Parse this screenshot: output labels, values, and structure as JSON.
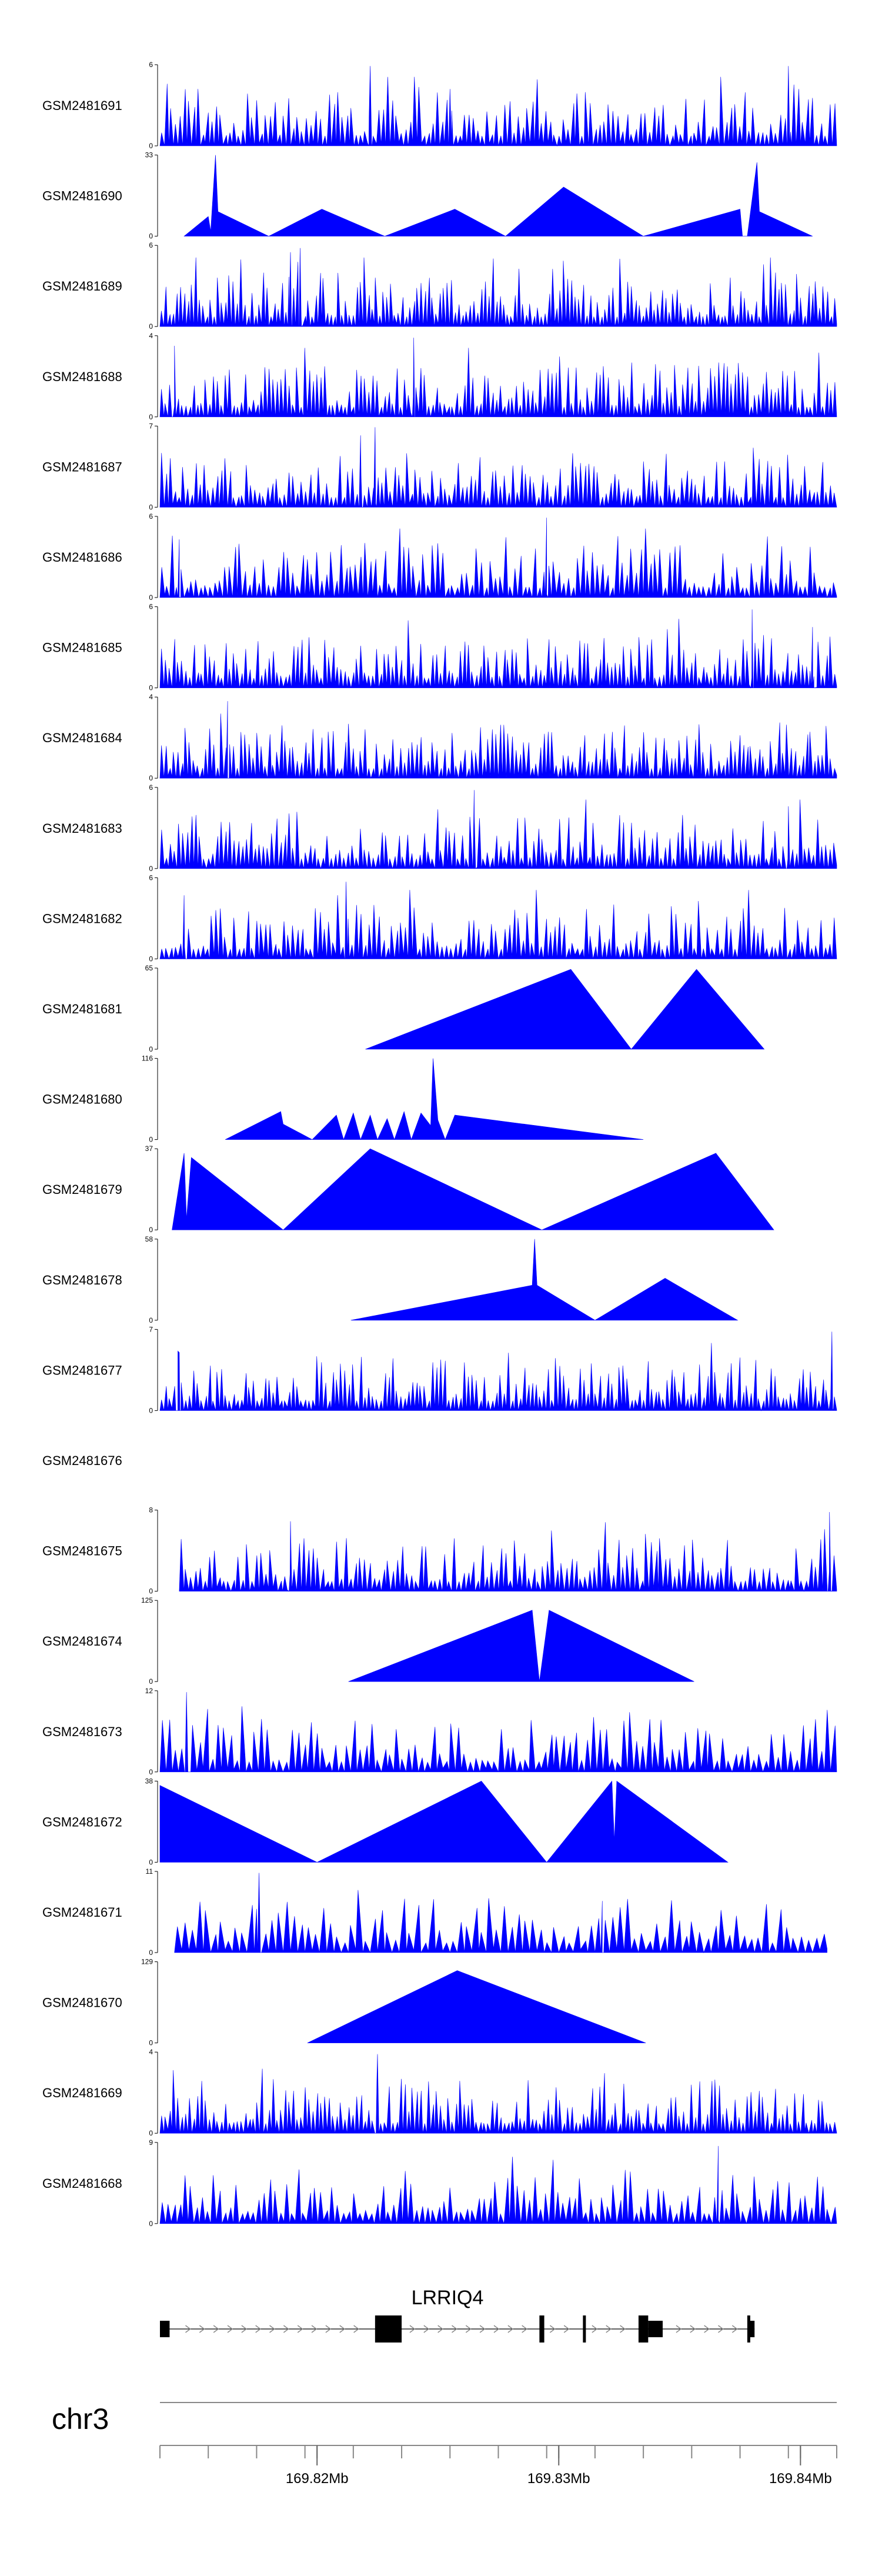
{
  "chart_data": {
    "type": "area",
    "fill_color": "#0000ff",
    "x_domain": [
      169.8135,
      169.8415
    ],
    "tracks": [
      {
        "name": "GSM2481691",
        "ymax": 6,
        "seed": 11,
        "density": 150,
        "start": 169.8135,
        "end": 169.8415,
        "peaks": [
          {
            "x": 169.8222,
            "v": 5.9
          },
          {
            "x": 169.8395,
            "v": 5.9
          },
          {
            "x": 169.8255,
            "v": 4.2
          }
        ]
      },
      {
        "name": "GSM2481690",
        "ymax": 33,
        "mode": "spans",
        "points": [
          [
            169.8145,
            0
          ],
          [
            169.8155,
            8
          ],
          [
            169.8156,
            2
          ],
          [
            169.8158,
            33
          ],
          [
            169.8159,
            10
          ],
          [
            169.818,
            0
          ],
          [
            169.8202,
            11
          ],
          [
            169.8228,
            0
          ],
          [
            169.8257,
            11
          ],
          [
            169.8278,
            0
          ],
          [
            169.8302,
            20
          ],
          [
            169.8335,
            0
          ],
          [
            169.8375,
            11
          ],
          [
            169.8376,
            0
          ],
          [
            169.8378,
            0
          ],
          [
            169.8382,
            30
          ],
          [
            169.8383,
            10
          ],
          [
            169.8405,
            0
          ]
        ]
      },
      {
        "name": "GSM2481689",
        "ymax": 6,
        "seed": 23,
        "density": 180,
        "start": 169.8135,
        "end": 169.8415,
        "peaks": [
          {
            "x": 169.8193,
            "v": 5.8
          },
          {
            "x": 169.8189,
            "v": 5.5
          }
        ]
      },
      {
        "name": "GSM2481688",
        "ymax": 4,
        "seed": 37,
        "density": 170,
        "start": 169.8135,
        "end": 169.8415,
        "peaks": [
          {
            "x": 169.824,
            "v": 3.9
          },
          {
            "x": 169.8141,
            "v": 3.5
          }
        ]
      },
      {
        "name": "GSM2481687",
        "ymax": 7,
        "seed": 41,
        "density": 160,
        "start": 169.8135,
        "end": 169.8415,
        "peaks": [
          {
            "x": 169.8224,
            "v": 6.9
          },
          {
            "x": 169.8218,
            "v": 6.2
          }
        ]
      },
      {
        "name": "GSM2481686",
        "ymax": 6,
        "seed": 53,
        "density": 140,
        "start": 169.8135,
        "end": 169.8415,
        "peaks": [
          {
            "x": 169.8295,
            "v": 5.9
          },
          {
            "x": 169.8143,
            "v": 4.3
          }
        ]
      },
      {
        "name": "GSM2481685",
        "ymax": 6,
        "seed": 61,
        "density": 170,
        "start": 169.8135,
        "end": 169.8415,
        "peaks": [
          {
            "x": 169.838,
            "v": 5.8
          },
          {
            "x": 169.8405,
            "v": 4.5
          }
        ]
      },
      {
        "name": "GSM2481684",
        "ymax": 4,
        "seed": 71,
        "density": 170,
        "start": 169.8135,
        "end": 169.8415,
        "peaks": [
          {
            "x": 169.8163,
            "v": 3.8
          }
        ]
      },
      {
        "name": "GSM2481683",
        "ymax": 6,
        "seed": 83,
        "density": 160,
        "start": 169.8135,
        "end": 169.8415,
        "peaks": [
          {
            "x": 169.8265,
            "v": 5.8
          },
          {
            "x": 169.8395,
            "v": 4.6
          }
        ]
      },
      {
        "name": "GSM2481682",
        "ymax": 6,
        "seed": 97,
        "density": 150,
        "start": 169.8135,
        "end": 169.8415,
        "peaks": [
          {
            "x": 169.8212,
            "v": 5.7
          },
          {
            "x": 169.8145,
            "v": 4.7
          }
        ]
      },
      {
        "name": "GSM2481681",
        "ymax": 65,
        "mode": "spans",
        "points": [
          [
            169.822,
            0
          ],
          [
            169.8305,
            64
          ],
          [
            169.833,
            0
          ],
          [
            169.8357,
            64
          ],
          [
            169.8385,
            0
          ]
        ]
      },
      {
        "name": "GSM2481680",
        "ymax": 116,
        "mode": "spans",
        "points": [
          [
            169.8162,
            0
          ],
          [
            169.8185,
            40
          ],
          [
            169.8186,
            22
          ],
          [
            169.8198,
            0
          ],
          [
            169.8208,
            35
          ],
          [
            169.8211,
            0
          ],
          [
            169.8215,
            38
          ],
          [
            169.8218,
            0
          ],
          [
            169.8222,
            35
          ],
          [
            169.8225,
            0
          ],
          [
            169.8229,
            30
          ],
          [
            169.8232,
            0
          ],
          [
            169.8236,
            40
          ],
          [
            169.8239,
            0
          ],
          [
            169.8243,
            38
          ],
          [
            169.8247,
            20
          ],
          [
            169.8248,
            116
          ],
          [
            169.825,
            28
          ],
          [
            169.8253,
            0
          ],
          [
            169.8257,
            35
          ],
          [
            169.8335,
            0
          ]
        ]
      },
      {
        "name": "GSM2481679",
        "ymax": 37,
        "mode": "spans",
        "points": [
          [
            169.814,
            0
          ],
          [
            169.8145,
            35
          ],
          [
            169.8146,
            5
          ],
          [
            169.8148,
            33
          ],
          [
            169.8186,
            0
          ],
          [
            169.8222,
            37
          ],
          [
            169.8293,
            0
          ],
          [
            169.8365,
            35
          ],
          [
            169.8389,
            0
          ]
        ]
      },
      {
        "name": "GSM2481678",
        "ymax": 58,
        "mode": "spans",
        "points": [
          [
            169.8214,
            0
          ],
          [
            169.8289,
            25
          ],
          [
            169.829,
            58
          ],
          [
            169.8291,
            25
          ],
          [
            169.8315,
            0
          ],
          [
            169.8344,
            30
          ],
          [
            169.8374,
            0
          ]
        ]
      },
      {
        "name": "GSM2481677",
        "ymax": 7,
        "seed": 131,
        "density": 170,
        "start": 169.8135,
        "end": 169.8415,
        "peaks": [
          {
            "x": 169.8143,
            "v": 5.0
          },
          {
            "x": 169.8413,
            "v": 6.8
          }
        ]
      },
      {
        "name": "GSM2481676",
        "ymax": 0,
        "mode": "empty",
        "points": []
      },
      {
        "name": "GSM2481675",
        "ymax": 8,
        "seed": 151,
        "density": 140,
        "start": 169.8143,
        "end": 169.8415,
        "peaks": [
          {
            "x": 169.8189,
            "v": 6.9
          },
          {
            "x": 169.8412,
            "v": 7.8
          }
        ]
      },
      {
        "name": "GSM2481674",
        "ymax": 125,
        "mode": "spans",
        "points": [
          [
            169.8213,
            0
          ],
          [
            169.8289,
            110
          ],
          [
            169.8292,
            0
          ],
          [
            169.8296,
            110
          ],
          [
            169.8356,
            0
          ]
        ]
      },
      {
        "name": "GSM2481673",
        "ymax": 12,
        "seed": 173,
        "density": 110,
        "start": 169.8135,
        "end": 169.8415,
        "peaks": [
          {
            "x": 169.8146,
            "v": 11.8
          }
        ]
      },
      {
        "name": "GSM2481672",
        "ymax": 38,
        "mode": "spans",
        "points": [
          [
            169.8135,
            36
          ],
          [
            169.82,
            0
          ],
          [
            169.8268,
            38
          ],
          [
            169.8295,
            0
          ],
          [
            169.8322,
            38
          ],
          [
            169.8323,
            10
          ],
          [
            169.8324,
            38
          ],
          [
            169.837,
            0
          ]
        ]
      },
      {
        "name": "GSM2481671",
        "ymax": 11,
        "seed": 191,
        "density": 90,
        "start": 169.8141,
        "end": 169.8411,
        "peaks": [
          {
            "x": 169.8176,
            "v": 10.8
          },
          {
            "x": 169.8318,
            "v": 7.0
          }
        ]
      },
      {
        "name": "GSM2481670",
        "ymax": 129,
        "mode": "spans",
        "points": [
          [
            169.8196,
            0
          ],
          [
            169.8258,
            115
          ],
          [
            169.8336,
            0
          ]
        ]
      },
      {
        "name": "GSM2481669",
        "ymax": 4,
        "seed": 211,
        "density": 170,
        "start": 169.8135,
        "end": 169.8415,
        "peaks": [
          {
            "x": 169.8225,
            "v": 3.9
          }
        ]
      },
      {
        "name": "GSM2481668",
        "ymax": 9,
        "seed": 223,
        "density": 120,
        "start": 169.8135,
        "end": 169.8415,
        "peaks": [
          {
            "x": 169.8366,
            "v": 8.6
          }
        ]
      }
    ],
    "gene": {
      "name": "LRRIQ4",
      "strand": "+",
      "start": 169.8135,
      "end": 169.8381,
      "exons": [
        {
          "start": 169.8135,
          "end": 169.8139,
          "type": "utr"
        },
        {
          "start": 169.8224,
          "end": 169.8235,
          "type": "coding"
        },
        {
          "start": 169.8292,
          "end": 169.8294,
          "type": "coding"
        },
        {
          "start": 169.831,
          "end": 169.8311,
          "type": "coding"
        },
        {
          "start": 169.8333,
          "end": 169.8337,
          "type": "coding"
        },
        {
          "start": 169.8337,
          "end": 169.8343,
          "type": "utr"
        },
        {
          "start": 169.8378,
          "end": 169.8379,
          "type": "coding"
        },
        {
          "start": 169.8379,
          "end": 169.8381,
          "type": "utr"
        }
      ]
    },
    "axis": {
      "chrom": "chr3",
      "major_ticks": [
        169.82,
        169.83,
        169.84
      ],
      "major_labels": [
        "169.82Mb",
        "169.83Mb",
        "169.84Mb"
      ],
      "minor_ticks": [
        169.8135,
        169.8155,
        169.8175,
        169.8195,
        169.82,
        169.8215,
        169.8235,
        169.8255,
        169.8275,
        169.8295,
        169.83,
        169.8315,
        169.8335,
        169.8355,
        169.8375,
        169.8395,
        169.84,
        169.8415
      ]
    }
  }
}
